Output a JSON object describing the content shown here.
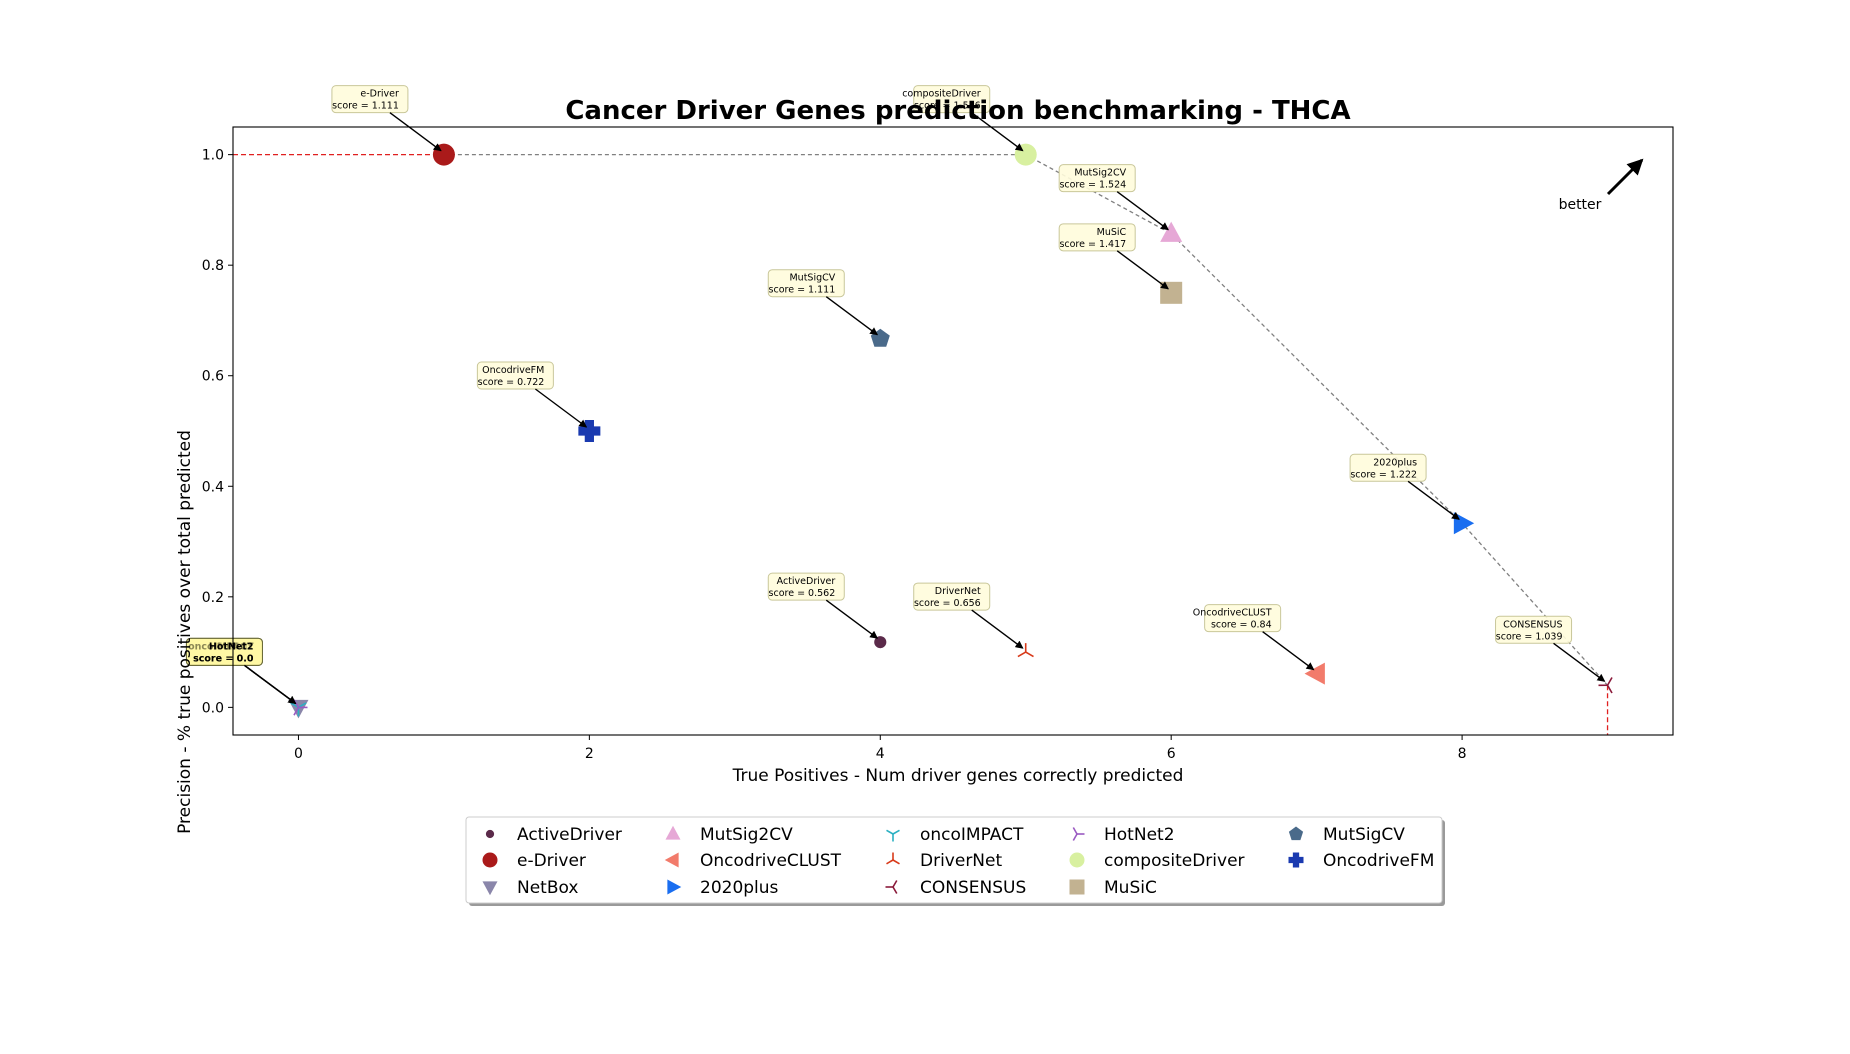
{
  "chart_data": {
    "type": "scatter",
    "title": "Cancer Driver Genes prediction benchmarking - THCA",
    "xlabel": "True Positives - Num driver genes correctly predicted",
    "ylabel": "Precision - % true positives over total predicted",
    "xlim": [
      -0.45,
      9.45
    ],
    "ylim": [
      -0.05,
      1.05
    ],
    "xticks": [
      0,
      2,
      4,
      6,
      8
    ],
    "yticks": [
      0.0,
      0.2,
      0.4,
      0.6,
      0.8,
      1.0
    ],
    "grid": false,
    "legend_position": "bottom-center",
    "better_label": "better",
    "pareto_front": [
      [
        1,
        1.0
      ],
      [
        5,
        1.0
      ],
      [
        6,
        0.857
      ],
      [
        8,
        0.333
      ],
      [
        9,
        0.04
      ]
    ],
    "series": [
      {
        "name": "ActiveDriver",
        "x": 4,
        "y": 0.118,
        "score_label": "score = 0.562",
        "marker": "circle-small",
        "color": "#5b2a4a"
      },
      {
        "name": "e-Driver",
        "x": 1,
        "y": 1.0,
        "score_label": "score = 1.111",
        "marker": "circle",
        "color": "#aa1a1a"
      },
      {
        "name": "NetBox",
        "x": 0,
        "y": 0.0,
        "score_label": "score = 0.0",
        "marker": "triangle-down",
        "color": "#8a86aa"
      },
      {
        "name": "MutSig2CV",
        "x": 6,
        "y": 0.857,
        "score_label": "score = 1.524",
        "marker": "triangle-up",
        "color": "#e6a8d6"
      },
      {
        "name": "OncodriveCLUST",
        "x": 7,
        "y": 0.061,
        "score_label": "score = 0.84",
        "marker": "triangle-left",
        "color": "#f27b6b"
      },
      {
        "name": "2020plus",
        "x": 8,
        "y": 0.333,
        "score_label": "score = 1.222",
        "marker": "triangle-right",
        "color": "#1a6ef0"
      },
      {
        "name": "oncoIMPACT",
        "x": 0,
        "y": 0.0,
        "score_label": "score = 0.0",
        "marker": "tri-down",
        "color": "#2ab0c2"
      },
      {
        "name": "DriverNet",
        "x": 5,
        "y": 0.1,
        "score_label": "score = 0.656",
        "marker": "tri-up",
        "color": "#d83a1a"
      },
      {
        "name": "CONSENSUS",
        "x": 9,
        "y": 0.04,
        "score_label": "score = 1.039",
        "marker": "tri-left",
        "color": "#8a1a3a"
      },
      {
        "name": "HotNet2",
        "x": 0,
        "y": 0.0,
        "score_label": "score = 0.0",
        "marker": "tri-right",
        "color": "#9a5ac2"
      },
      {
        "name": "compositeDriver",
        "x": 5,
        "y": 1.0,
        "score_label": "score = 1.556",
        "marker": "circle",
        "color": "#d8f0a0"
      },
      {
        "name": "MuSiC",
        "x": 6,
        "y": 0.75,
        "score_label": "score = 1.417",
        "marker": "square",
        "color": "#c2b291"
      },
      {
        "name": "MutSigCV",
        "x": 4,
        "y": 0.667,
        "score_label": "score = 1.111",
        "marker": "pentagon",
        "color": "#4a6a8a"
      },
      {
        "name": "OncodriveFM",
        "x": 2,
        "y": 0.5,
        "score_label": "score = 0.722",
        "marker": "plus",
        "color": "#1a3ab0"
      }
    ]
  }
}
